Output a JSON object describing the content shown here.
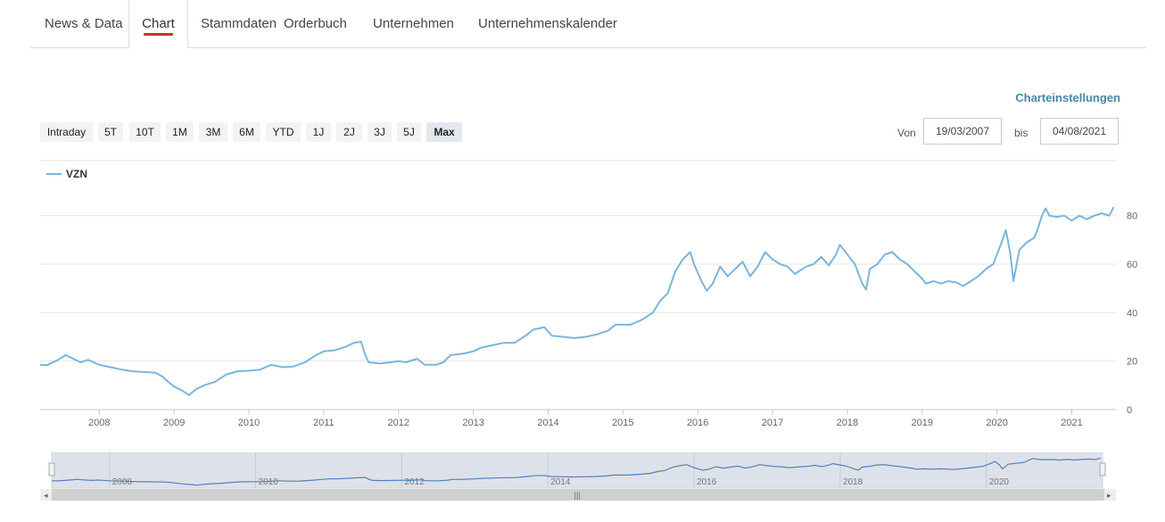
{
  "tabs": [
    {
      "label": "News & Data",
      "active": false
    },
    {
      "label": "Chart",
      "active": true
    },
    {
      "label": "Stammdaten",
      "active": false
    },
    {
      "label": "Orderbuch",
      "active": false
    },
    {
      "label": "Unternehmen",
      "active": false
    },
    {
      "label": "Unternehmenskalender",
      "active": false
    }
  ],
  "accent_color": "#c0392b",
  "settings_label": "Charteinstellungen",
  "ranges": [
    "Intraday",
    "5T",
    "10T",
    "1M",
    "3M",
    "6M",
    "YTD",
    "1J",
    "2J",
    "3J",
    "5J",
    "Max"
  ],
  "selected_range": "Max",
  "date_range": {
    "from_label": "Von",
    "from": "19/03/2007",
    "to_label": "bis",
    "to": "04/08/2021"
  },
  "chart_data": {
    "type": "line",
    "series": [
      {
        "name": "VZN",
        "color": "#7cb5d9",
        "points": [
          [
            2007.21,
            18.5
          ],
          [
            2007.3,
            18.3
          ],
          [
            2007.45,
            20.5
          ],
          [
            2007.55,
            22.5
          ],
          [
            2007.65,
            21.0
          ],
          [
            2007.75,
            19.5
          ],
          [
            2007.85,
            20.5
          ],
          [
            2008.0,
            18.5
          ],
          [
            2008.15,
            17.5
          ],
          [
            2008.3,
            16.5
          ],
          [
            2008.45,
            15.8
          ],
          [
            2008.6,
            15.5
          ],
          [
            2008.75,
            15.2
          ],
          [
            2008.85,
            13.5
          ],
          [
            2008.9,
            12.0
          ],
          [
            2009.0,
            9.5
          ],
          [
            2009.1,
            8.0
          ],
          [
            2009.2,
            6.0
          ],
          [
            2009.3,
            8.5
          ],
          [
            2009.4,
            10.0
          ],
          [
            2009.55,
            11.5
          ],
          [
            2009.7,
            14.5
          ],
          [
            2009.85,
            15.8
          ],
          [
            2010.0,
            16.0
          ],
          [
            2010.15,
            16.5
          ],
          [
            2010.3,
            18.5
          ],
          [
            2010.45,
            17.5
          ],
          [
            2010.6,
            17.8
          ],
          [
            2010.75,
            19.5
          ],
          [
            2010.9,
            22.5
          ],
          [
            2011.0,
            24.0
          ],
          [
            2011.15,
            24.5
          ],
          [
            2011.3,
            26.0
          ],
          [
            2011.4,
            27.5
          ],
          [
            2011.5,
            28.0
          ],
          [
            2011.55,
            23.0
          ],
          [
            2011.6,
            19.5
          ],
          [
            2011.75,
            19.0
          ],
          [
            2011.9,
            19.5
          ],
          [
            2012.0,
            20.0
          ],
          [
            2012.1,
            19.5
          ],
          [
            2012.25,
            21.0
          ],
          [
            2012.35,
            18.5
          ],
          [
            2012.5,
            18.5
          ],
          [
            2012.6,
            19.5
          ],
          [
            2012.7,
            22.5
          ],
          [
            2012.85,
            23.0
          ],
          [
            2013.0,
            24.0
          ],
          [
            2013.1,
            25.5
          ],
          [
            2013.25,
            26.5
          ],
          [
            2013.4,
            27.5
          ],
          [
            2013.55,
            27.5
          ],
          [
            2013.7,
            30.5
          ],
          [
            2013.8,
            33.0
          ],
          [
            2013.95,
            34.0
          ],
          [
            2014.05,
            30.5
          ],
          [
            2014.2,
            30.0
          ],
          [
            2014.35,
            29.5
          ],
          [
            2014.5,
            30.0
          ],
          [
            2014.65,
            31.0
          ],
          [
            2014.8,
            32.5
          ],
          [
            2014.9,
            35.0
          ],
          [
            2015.1,
            35.0
          ],
          [
            2015.25,
            37.0
          ],
          [
            2015.4,
            40.0
          ],
          [
            2015.5,
            45.0
          ],
          [
            2015.6,
            48.0
          ],
          [
            2015.7,
            57.0
          ],
          [
            2015.8,
            62.0
          ],
          [
            2015.9,
            65.0
          ],
          [
            2015.95,
            60.0
          ],
          [
            2016.05,
            53.0
          ],
          [
            2016.12,
            49.0
          ],
          [
            2016.2,
            52.0
          ],
          [
            2016.3,
            59.0
          ],
          [
            2016.4,
            55.0
          ],
          [
            2016.5,
            58.0
          ],
          [
            2016.6,
            61.0
          ],
          [
            2016.7,
            55.0
          ],
          [
            2016.8,
            59.0
          ],
          [
            2016.9,
            65.0
          ],
          [
            2017.0,
            62.0
          ],
          [
            2017.1,
            60.0
          ],
          [
            2017.2,
            59.0
          ],
          [
            2017.3,
            56.0
          ],
          [
            2017.45,
            59.0
          ],
          [
            2017.55,
            60.0
          ],
          [
            2017.65,
            63.0
          ],
          [
            2017.75,
            59.5
          ],
          [
            2017.85,
            64.0
          ],
          [
            2017.9,
            68.0
          ],
          [
            2018.0,
            64.0
          ],
          [
            2018.1,
            60.0
          ],
          [
            2018.2,
            52.0
          ],
          [
            2018.25,
            49.5
          ],
          [
            2018.3,
            58.0
          ],
          [
            2018.4,
            60.0
          ],
          [
            2018.5,
            64.0
          ],
          [
            2018.6,
            65.0
          ],
          [
            2018.7,
            62.0
          ],
          [
            2018.8,
            60.0
          ],
          [
            2018.9,
            57.0
          ],
          [
            2019.0,
            54.0
          ],
          [
            2019.05,
            52.0
          ],
          [
            2019.15,
            53.0
          ],
          [
            2019.25,
            52.0
          ],
          [
            2019.35,
            53.0
          ],
          [
            2019.45,
            52.5
          ],
          [
            2019.55,
            51.0
          ],
          [
            2019.65,
            53.0
          ],
          [
            2019.75,
            55.0
          ],
          [
            2019.85,
            58.0
          ],
          [
            2019.95,
            60.0
          ],
          [
            2020.05,
            68.0
          ],
          [
            2020.12,
            74.0
          ],
          [
            2020.18,
            64.0
          ],
          [
            2020.22,
            53.0
          ],
          [
            2020.3,
            66.0
          ],
          [
            2020.4,
            69.0
          ],
          [
            2020.5,
            71.0
          ],
          [
            2020.55,
            75.0
          ],
          [
            2020.6,
            80.0
          ],
          [
            2020.65,
            83.0
          ],
          [
            2020.7,
            80.0
          ],
          [
            2020.8,
            79.5
          ],
          [
            2020.9,
            80.0
          ],
          [
            2021.0,
            78.0
          ],
          [
            2021.1,
            80.0
          ],
          [
            2021.2,
            78.5
          ],
          [
            2021.3,
            80.0
          ],
          [
            2021.4,
            81.0
          ],
          [
            2021.5,
            80.0
          ],
          [
            2021.56,
            83.5
          ]
        ]
      }
    ],
    "x_ticks": [
      2008,
      2009,
      2010,
      2011,
      2012,
      2013,
      2014,
      2015,
      2016,
      2017,
      2018,
      2019,
      2020,
      2021
    ],
    "y_ticks": [
      0,
      20,
      40,
      60,
      80
    ],
    "xlim": [
      2007.21,
      2021.59
    ],
    "ylim": [
      0,
      88
    ],
    "grid": "horizontal",
    "legend_position": "top-left",
    "navigator_ticks": [
      2008,
      2010,
      2012,
      2014,
      2016,
      2018,
      2020
    ]
  }
}
